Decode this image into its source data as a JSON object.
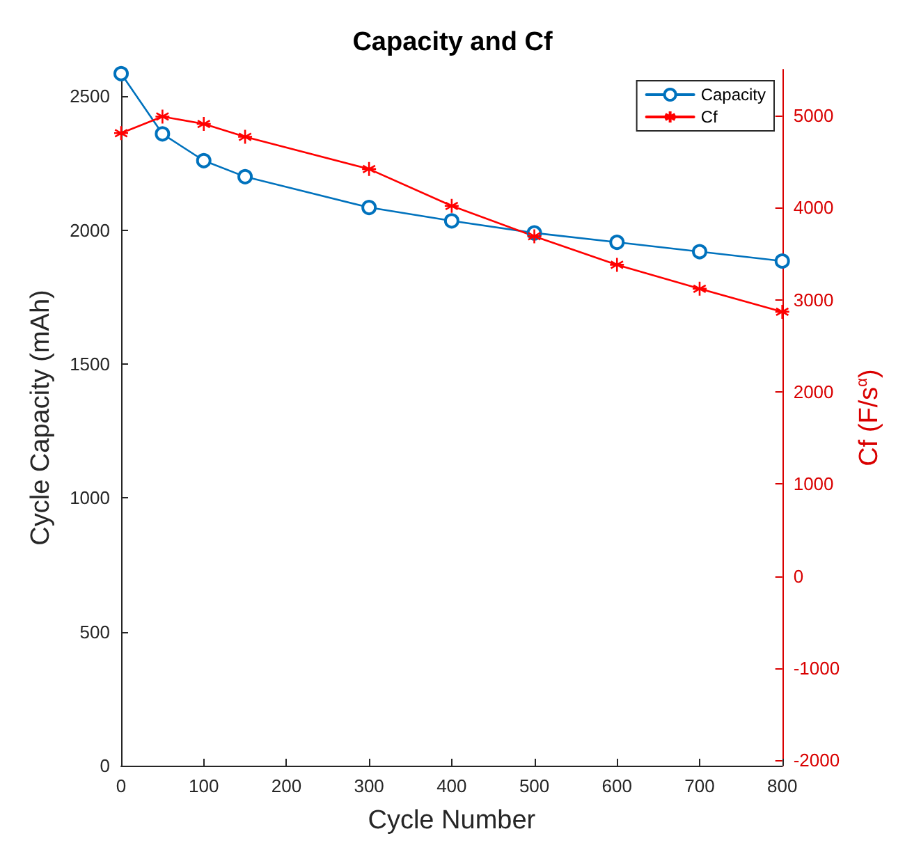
{
  "chart_data": {
    "type": "line",
    "title": "Capacity and Cf",
    "xlabel": "Cycle Number",
    "ylabel": "Cycle Capacity (mAh)",
    "y2label": "Cf (F/s$^{α}$)",
    "x": [
      0,
      50,
      100,
      150,
      300,
      400,
      500,
      600,
      700,
      800
    ],
    "series": [
      {
        "name": "Capacity",
        "color": "#0072bd",
        "marker": "circle",
        "values": [
          2585,
          2360,
          2260,
          2200,
          2085,
          2035,
          1990,
          1955,
          1920,
          1885
        ]
      },
      {
        "name": "Cf",
        "color": "#ff0000",
        "marker": "cross",
        "axis": "y2",
        "values": [
          4810,
          4990,
          4910,
          4770,
          4420,
          4020,
          3690,
          3380,
          3120,
          2870
        ]
      }
    ],
    "xlim": [
      0,
      800
    ],
    "xticks": [
      0,
      100,
      200,
      300,
      400,
      500,
      600,
      700,
      800
    ],
    "ylim": [
      0,
      2600
    ],
    "yticks": [
      0,
      500,
      1000,
      1500,
      2000,
      2500
    ],
    "y2lim": [
      -2060,
      5500
    ],
    "y2ticks": [
      -2000,
      -1000,
      0,
      1000,
      2000,
      3000,
      4000,
      5000
    ],
    "legend": "top right",
    "grid": false
  }
}
